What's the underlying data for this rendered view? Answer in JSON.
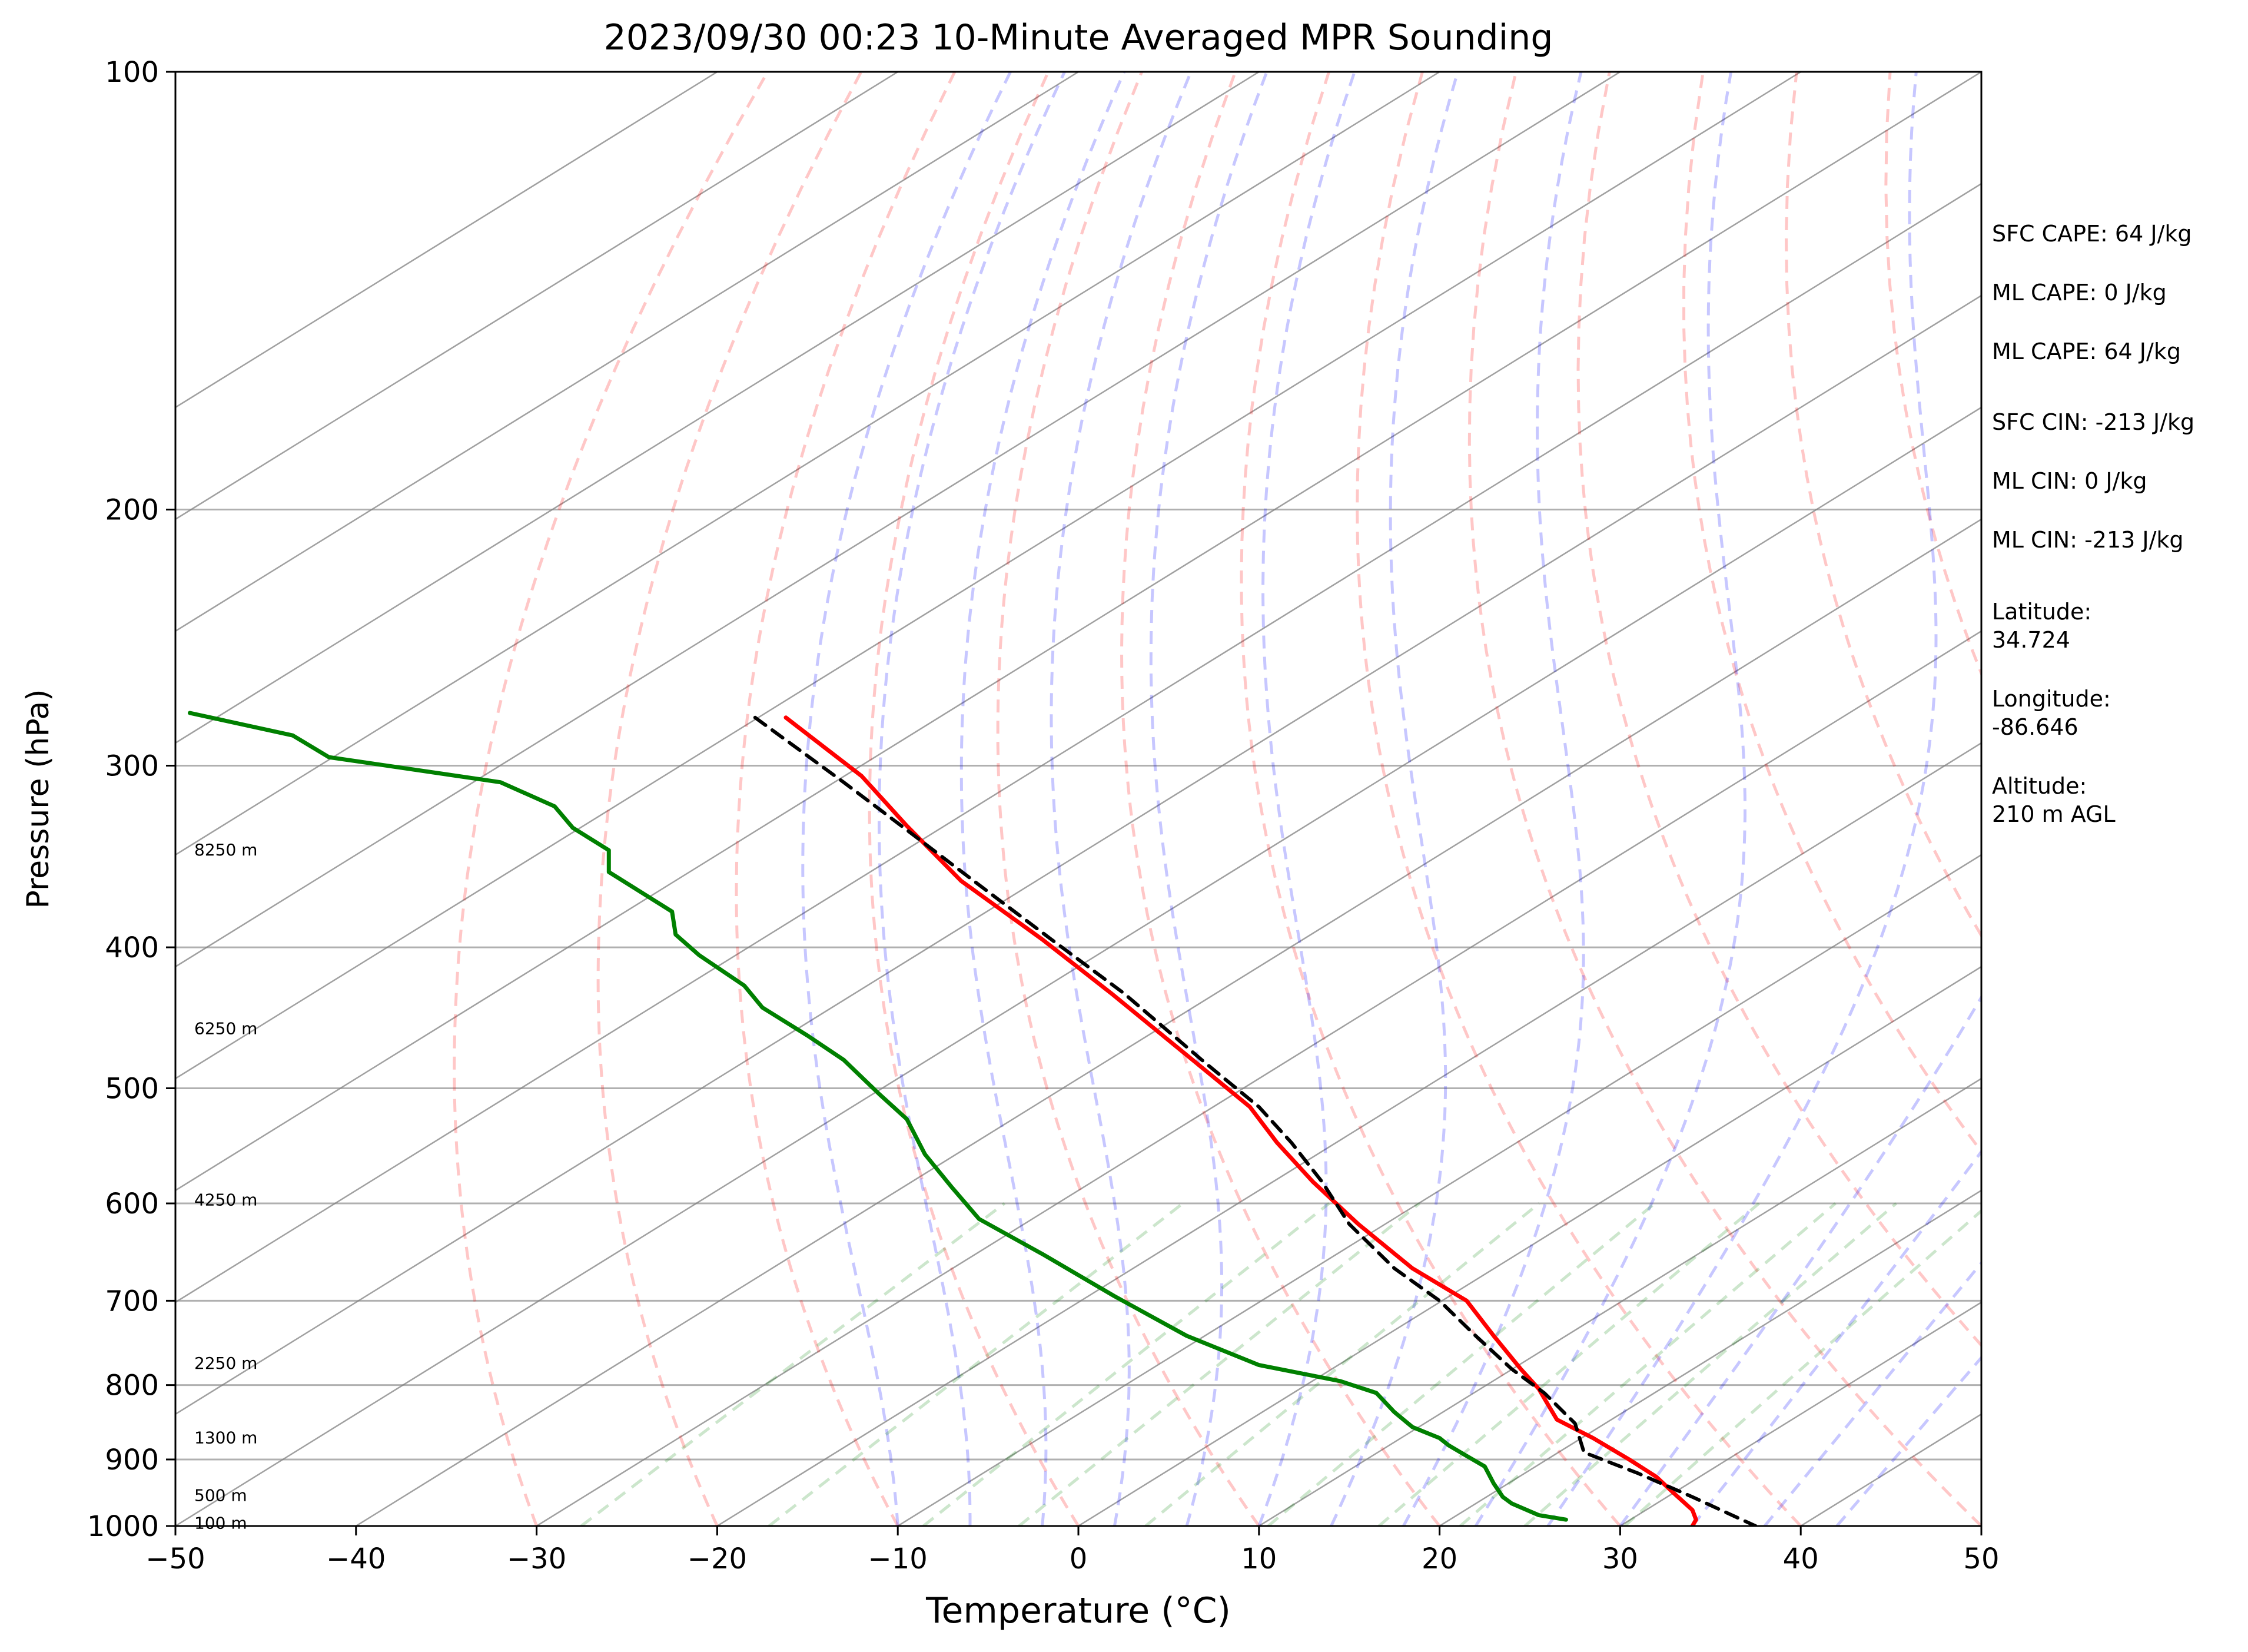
{
  "chart_data": {
    "type": "line",
    "title": "2023/09/30 00:23 10-Minute Averaged MPR Sounding",
    "xlabel": "Temperature (°C)",
    "ylabel": "Pressure (hPa)",
    "xlim": [
      -50,
      50
    ],
    "ylim": [
      1000,
      100
    ],
    "y_scale": "log",
    "grid": true,
    "x_ticks": [
      "−50",
      "−40",
      "−30",
      "−20",
      "−10",
      "0",
      "10",
      "20",
      "30",
      "40",
      "50"
    ],
    "y_ticks": [
      "100",
      "200",
      "300",
      "400",
      "500",
      "600",
      "700",
      "800",
      "900",
      "1000"
    ],
    "series": [
      {
        "color": "#ff0000",
        "points": [
          [
            -16.2,
            278
          ],
          [
            -12.0,
            305
          ],
          [
            -9.5,
            330
          ],
          [
            -6.5,
            360
          ],
          [
            -2.0,
            395
          ],
          [
            1.8,
            430
          ],
          [
            6.5,
            480
          ],
          [
            9.5,
            515
          ],
          [
            11.0,
            545
          ],
          [
            13.0,
            580
          ],
          [
            15.5,
            620
          ],
          [
            18.5,
            665
          ],
          [
            21.5,
            700
          ],
          [
            23.0,
            740
          ],
          [
            24.5,
            780
          ],
          [
            25.5,
            805
          ],
          [
            26.0,
            825
          ],
          [
            26.5,
            845
          ],
          [
            28.5,
            870
          ],
          [
            30.5,
            900
          ],
          [
            32.0,
            925
          ],
          [
            33.0,
            950
          ],
          [
            34.0,
            975
          ],
          [
            34.2,
            990
          ],
          [
            34.0,
            1000
          ]
        ]
      },
      {
        "color": "#008000",
        "points": [
          [
            -49.2,
            276
          ],
          [
            -43.5,
            286
          ],
          [
            -41.5,
            296
          ],
          [
            -32.0,
            308
          ],
          [
            -29.0,
            320
          ],
          [
            -28.0,
            331
          ],
          [
            -26.0,
            343
          ],
          [
            -26.0,
            355
          ],
          [
            -22.5,
            378
          ],
          [
            -22.3,
            392
          ],
          [
            -21.0,
            405
          ],
          [
            -18.5,
            425
          ],
          [
            -17.5,
            440
          ],
          [
            -15.0,
            460
          ],
          [
            -13.0,
            478
          ],
          [
            -11.0,
            505
          ],
          [
            -9.5,
            525
          ],
          [
            -8.5,
            555
          ],
          [
            -7.0,
            585
          ],
          [
            -5.5,
            615
          ],
          [
            -2.0,
            650
          ],
          [
            2.0,
            695
          ],
          [
            6.0,
            740
          ],
          [
            10.0,
            775
          ],
          [
            14.5,
            795
          ],
          [
            16.5,
            810
          ],
          [
            17.5,
            835
          ],
          [
            18.5,
            855
          ],
          [
            20.0,
            870
          ],
          [
            20.5,
            880
          ],
          [
            21.5,
            895
          ],
          [
            22.5,
            910
          ],
          [
            23.0,
            935
          ],
          [
            23.5,
            955
          ],
          [
            24.0,
            965
          ],
          [
            25.5,
            983
          ],
          [
            27.0,
            990
          ]
        ]
      },
      {
        "color": "#000000",
        "dashed": true,
        "points": [
          [
            -17.9,
            278
          ],
          [
            -13.0,
            308
          ],
          [
            -9.8,
            330
          ],
          [
            -5.8,
            360
          ],
          [
            -1.5,
            395
          ],
          [
            2.5,
            430
          ],
          [
            7.0,
            480
          ],
          [
            10.0,
            515
          ],
          [
            11.8,
            545
          ],
          [
            13.5,
            580
          ],
          [
            15.0,
            620
          ],
          [
            17.5,
            665
          ],
          [
            20.0,
            700
          ],
          [
            22.0,
            740
          ],
          [
            24.0,
            780
          ],
          [
            25.8,
            810
          ],
          [
            27.5,
            850
          ],
          [
            28.0,
            890
          ],
          [
            31.0,
            920
          ],
          [
            34.0,
            955
          ],
          [
            37.5,
            1000
          ]
        ]
      }
    ],
    "height_labels": [
      {
        "text": "8250 m",
        "p": 343
      },
      {
        "text": "6250 m",
        "p": 455
      },
      {
        "text": "4250 m",
        "p": 597
      },
      {
        "text": "2250 m",
        "p": 773
      },
      {
        "text": "1300 m",
        "p": 870
      },
      {
        "text": "500 m",
        "p": 953
      },
      {
        "text": "100 m",
        "p": 996
      }
    ],
    "annotations": [
      "SFC CAPE: 64 J/kg",
      "ML CAPE: 0 J/kg",
      "ML CAPE: 64 J/kg",
      "SFC CIN: -213 J/kg",
      "ML CIN: 0 J/kg",
      "ML CIN: -213 J/kg",
      "Latitude:\n34.724",
      "Longitude:\n-86.646",
      "Altitude:\n210 m AGL"
    ],
    "reference_line_colors": {
      "isotherm": "#808080",
      "dry_adiabat": "#ff0000",
      "moist_adiabat": "#0000ff",
      "mixing_ratio": "#008000"
    }
  }
}
